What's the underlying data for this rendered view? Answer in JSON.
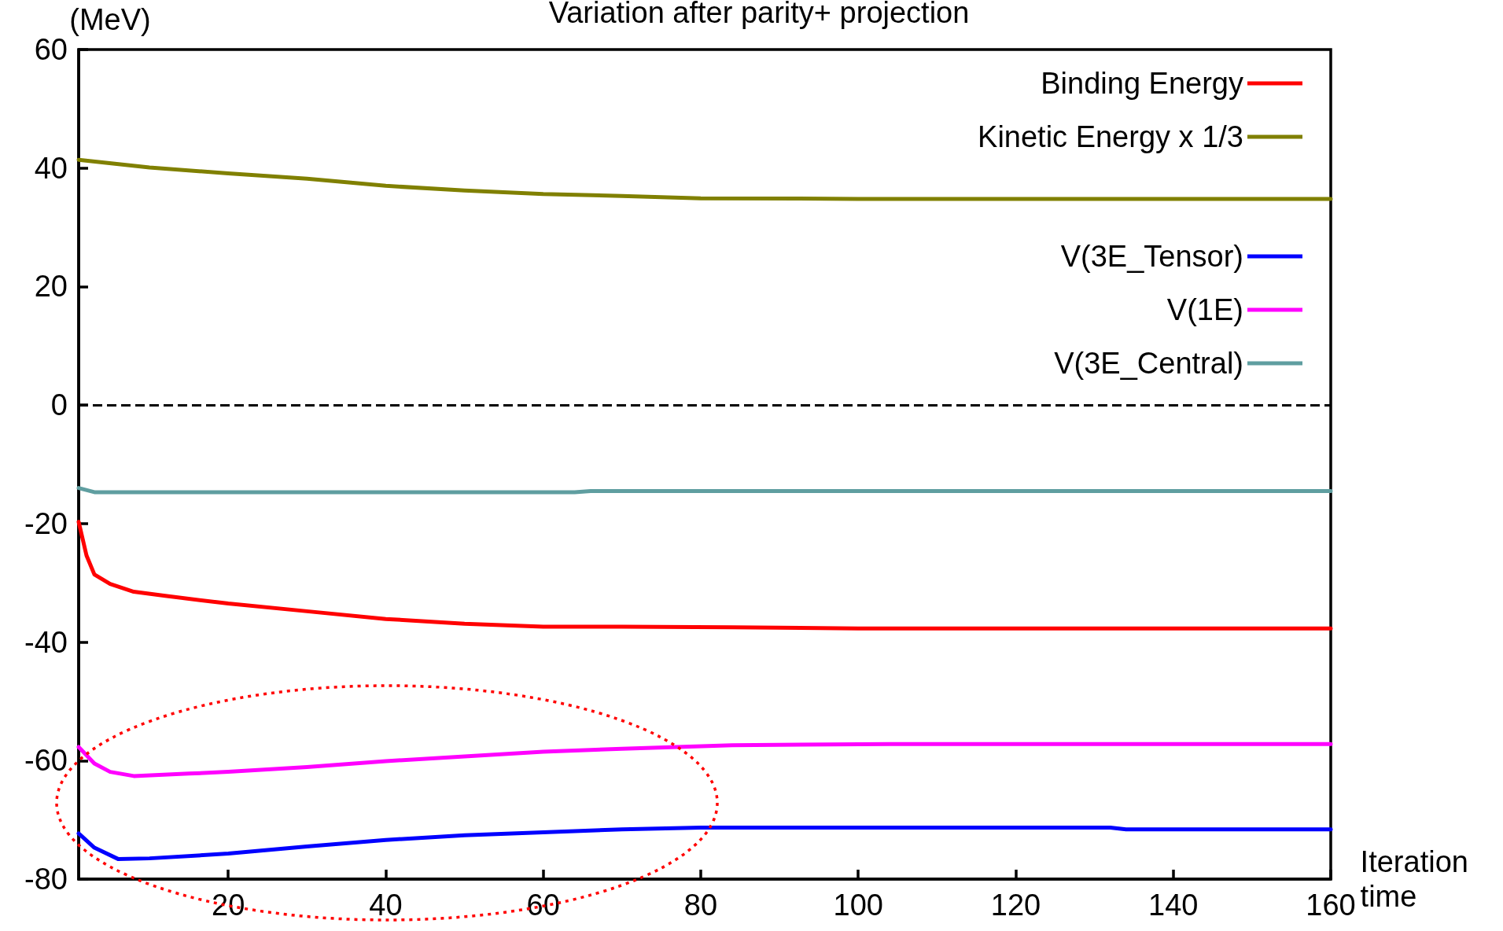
{
  "chart_data": {
    "type": "line",
    "title": "Variation after parity+ projection",
    "xlabel": "Iteration\ntime",
    "ylabel": "(MeV)",
    "xlim": [
      1,
      160
    ],
    "xticks": [
      20,
      40,
      60,
      80,
      100,
      120,
      140,
      160
    ],
    "ylim": [
      -80,
      60
    ],
    "yticks": [
      -80,
      -60,
      -40,
      -20,
      0,
      20,
      40,
      60
    ],
    "grid": false,
    "legend": "top right",
    "marker": "none",
    "line_style": "solid",
    "ref_lines": [
      {
        "axis": "y",
        "value": 0,
        "color": "#000000",
        "line_style": "dashed"
      }
    ],
    "series": [
      {
        "name": "Binding Energy",
        "color": "#ff0000",
        "x": [
          1,
          2,
          3,
          5,
          8,
          12,
          20,
          30,
          40,
          50,
          60,
          70,
          84,
          100,
          160
        ],
        "values": [
          -19.7,
          -25.4,
          -28.6,
          -30.2,
          -31.5,
          -32.2,
          -33.5,
          -34.8,
          -36.1,
          -36.9,
          -37.4,
          -37.4,
          -37.5,
          -37.7,
          -37.7
        ]
      },
      {
        "name": "Kinetic Energy x 1/3",
        "color": "#808000",
        "x": [
          1,
          10,
          20,
          30,
          40,
          50,
          60,
          70,
          80,
          100,
          160
        ],
        "values": [
          41.4,
          40.1,
          39.1,
          38.2,
          37.0,
          36.2,
          35.6,
          35.3,
          34.9,
          34.8,
          34.8
        ]
      },
      {
        "name": "V(3E_Tensor)",
        "color": "#0000ff",
        "x": [
          1,
          3,
          6,
          10,
          20,
          30,
          40,
          50,
          60,
          70,
          80,
          100,
          132,
          134,
          160
        ],
        "values": [
          -72.3,
          -74.7,
          -76.6,
          -76.5,
          -75.7,
          -74.5,
          -73.4,
          -72.6,
          -72.1,
          -71.6,
          -71.3,
          -71.3,
          -71.3,
          -71.6,
          -71.6
        ]
      },
      {
        "name": "V(1E)",
        "color": "#ff00ff",
        "x": [
          1,
          3,
          5,
          8,
          15,
          20,
          30,
          40,
          50,
          60,
          70,
          84,
          104,
          160
        ],
        "values": [
          -57.7,
          -60.5,
          -61.9,
          -62.6,
          -62.2,
          -61.9,
          -61.1,
          -60.1,
          -59.3,
          -58.5,
          -58.0,
          -57.4,
          -57.2,
          -57.2
        ]
      },
      {
        "name": "V(3E_Central)",
        "color": "#5f9ea0",
        "x": [
          1,
          3,
          64,
          66,
          160
        ],
        "values": [
          -14.0,
          -14.7,
          -14.7,
          -14.5,
          -14.5
        ]
      }
    ]
  }
}
